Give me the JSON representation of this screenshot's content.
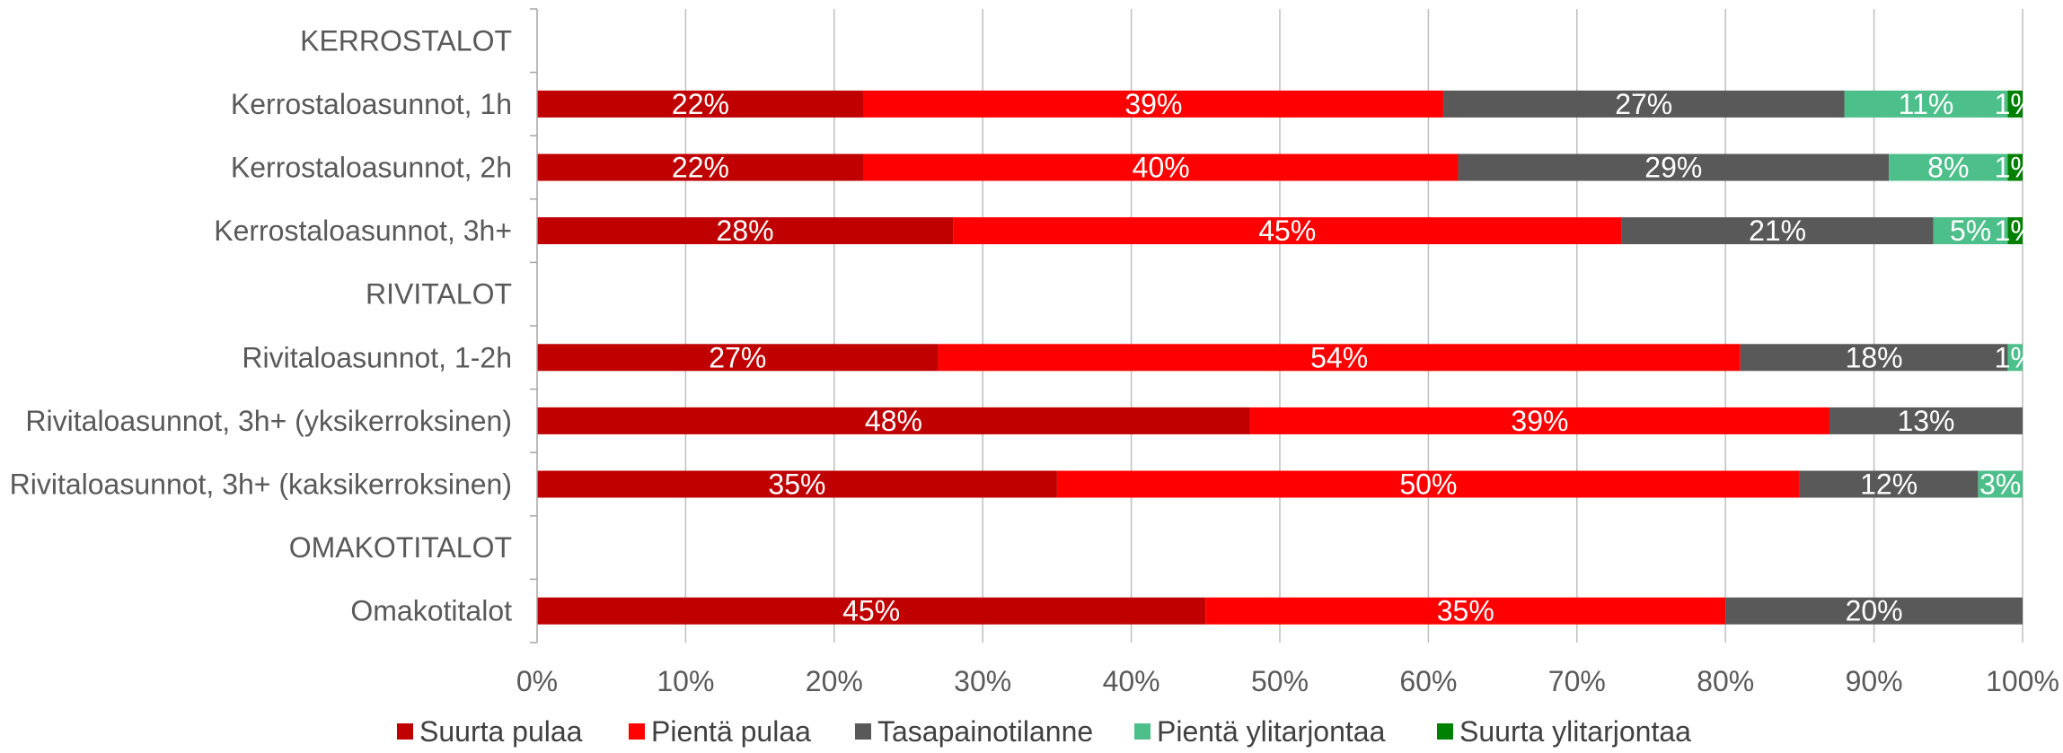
{
  "chart_data": {
    "type": "bar",
    "orientation": "horizontal",
    "stacked": "percent",
    "categories": [
      "KERROSTALOT",
      "Kerrostaloasunnot, 1h",
      "Kerrostaloasunnot, 2h",
      "Kerrostaloasunnot, 3h+",
      "RIVITALOT",
      "Rivitaloasunnot, 1-2h",
      "Rivitaloasunnot, 3h+ (yksikerroksinen)",
      "Rivitaloasunnot, 3h+ (kaksikerroksinen)",
      "OMAKOTITALOT",
      "Omakotitalot"
    ],
    "series": [
      {
        "name": "Suurta pulaa",
        "color": "#c00000",
        "values": [
          null,
          22,
          22,
          28,
          null,
          27,
          48,
          35,
          null,
          45
        ]
      },
      {
        "name": "Pientä pulaa",
        "color": "#ff0000",
        "values": [
          null,
          39,
          40,
          45,
          null,
          54,
          39,
          50,
          null,
          35
        ]
      },
      {
        "name": "Tasapainotilanne",
        "color": "#595959",
        "values": [
          null,
          27,
          29,
          21,
          null,
          18,
          13,
          12,
          null,
          20
        ]
      },
      {
        "name": "Pientä ylitarjontaa",
        "color": "#4dbf8b",
        "values": [
          null,
          11,
          8,
          5,
          null,
          1,
          0,
          3,
          null,
          0
        ]
      },
      {
        "name": "Suurta ylitarjontaa",
        "color": "#008000",
        "values": [
          null,
          1,
          1,
          1,
          null,
          0,
          0,
          0,
          null,
          0
        ]
      }
    ],
    "xlim": [
      0,
      100
    ],
    "xticks": [
      "0%",
      "10%",
      "20%",
      "30%",
      "40%",
      "50%",
      "60%",
      "70%",
      "80%",
      "90%",
      "100%"
    ],
    "grid": "vertical",
    "legend": "bottom"
  }
}
